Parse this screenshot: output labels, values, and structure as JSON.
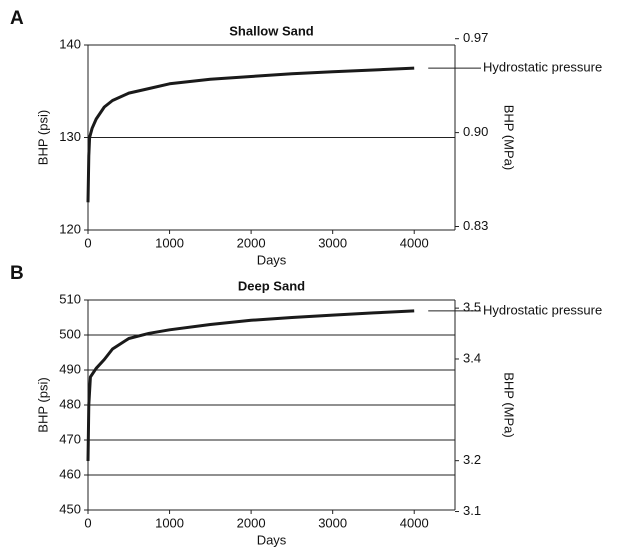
{
  "chart_data": [
    {
      "type": "line",
      "panel": "A",
      "title": "Shallow Sand",
      "xlabel": "Days",
      "ylabel": "BHP (psi)",
      "y2label": "BHP (MPa)",
      "annotation": "Hydrostatic pressure",
      "x": [
        0,
        10,
        20,
        50,
        100,
        200,
        300,
        500,
        750,
        1000,
        1500,
        2000,
        2500,
        3000,
        3500,
        4000
      ],
      "series": [
        {
          "color": "#1a1a1a",
          "values": [
            123,
            128,
            130,
            131,
            132,
            133.3,
            134,
            134.8,
            135.3,
            135.8,
            136.3,
            136.6,
            136.9,
            137.1,
            137.3,
            137.5
          ]
        }
      ],
      "xlim": [
        0,
        4500
      ],
      "xticks": [
        0,
        1000,
        2000,
        3000,
        4000
      ],
      "ylim": [
        120,
        140
      ],
      "yticks": [
        120,
        130,
        140
      ],
      "y2lim": [
        0.8274,
        0.9653
      ],
      "y2ticks": [
        0.83,
        {
          "value": 0.9,
          "label": "0.90"
        },
        0.97
      ],
      "grid": true
    },
    {
      "type": "line",
      "panel": "B",
      "title": "Deep Sand",
      "xlabel": "Days",
      "ylabel": "BHP (psi)",
      "y2label": "BHP (MPa)",
      "annotation": "Hydrostatic pressure",
      "x": [
        0,
        10,
        30,
        100,
        200,
        300,
        500,
        750,
        1000,
        1500,
        2000,
        2500,
        3000,
        3500,
        4000
      ],
      "series": [
        {
          "color": "#1a1a1a",
          "values": [
            464,
            480,
            488,
            490.5,
            493,
            496,
            499,
            500.5,
            501.5,
            503,
            504.2,
            505,
            505.7,
            506.3,
            506.9
          ]
        }
      ],
      "xlim": [
        0,
        4500
      ],
      "xticks": [
        0,
        1000,
        2000,
        3000,
        4000
      ],
      "ylim": [
        450,
        510
      ],
      "yticks": [
        450,
        460,
        470,
        480,
        490,
        500,
        510
      ],
      "y2lim": [
        3.103,
        3.516
      ],
      "y2ticks": [
        3.1,
        3.2,
        3.4,
        3.5
      ],
      "grid": true
    }
  ]
}
